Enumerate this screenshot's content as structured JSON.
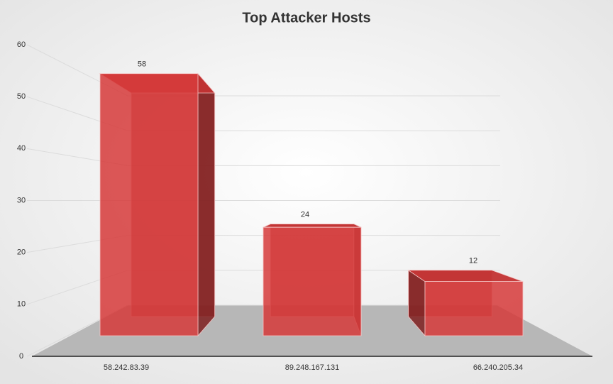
{
  "chart_data": {
    "type": "bar3d",
    "title": "Top Attacker Hosts",
    "categories": [
      "58.242.83.39",
      "89.248.167.131",
      "66.240.205.34"
    ],
    "values": [
      58,
      24,
      12
    ],
    "color": "#d63a3a",
    "ylim": [
      0,
      60
    ],
    "yticks": [
      0,
      10,
      20,
      30,
      40,
      50,
      60
    ],
    "grid": true
  }
}
